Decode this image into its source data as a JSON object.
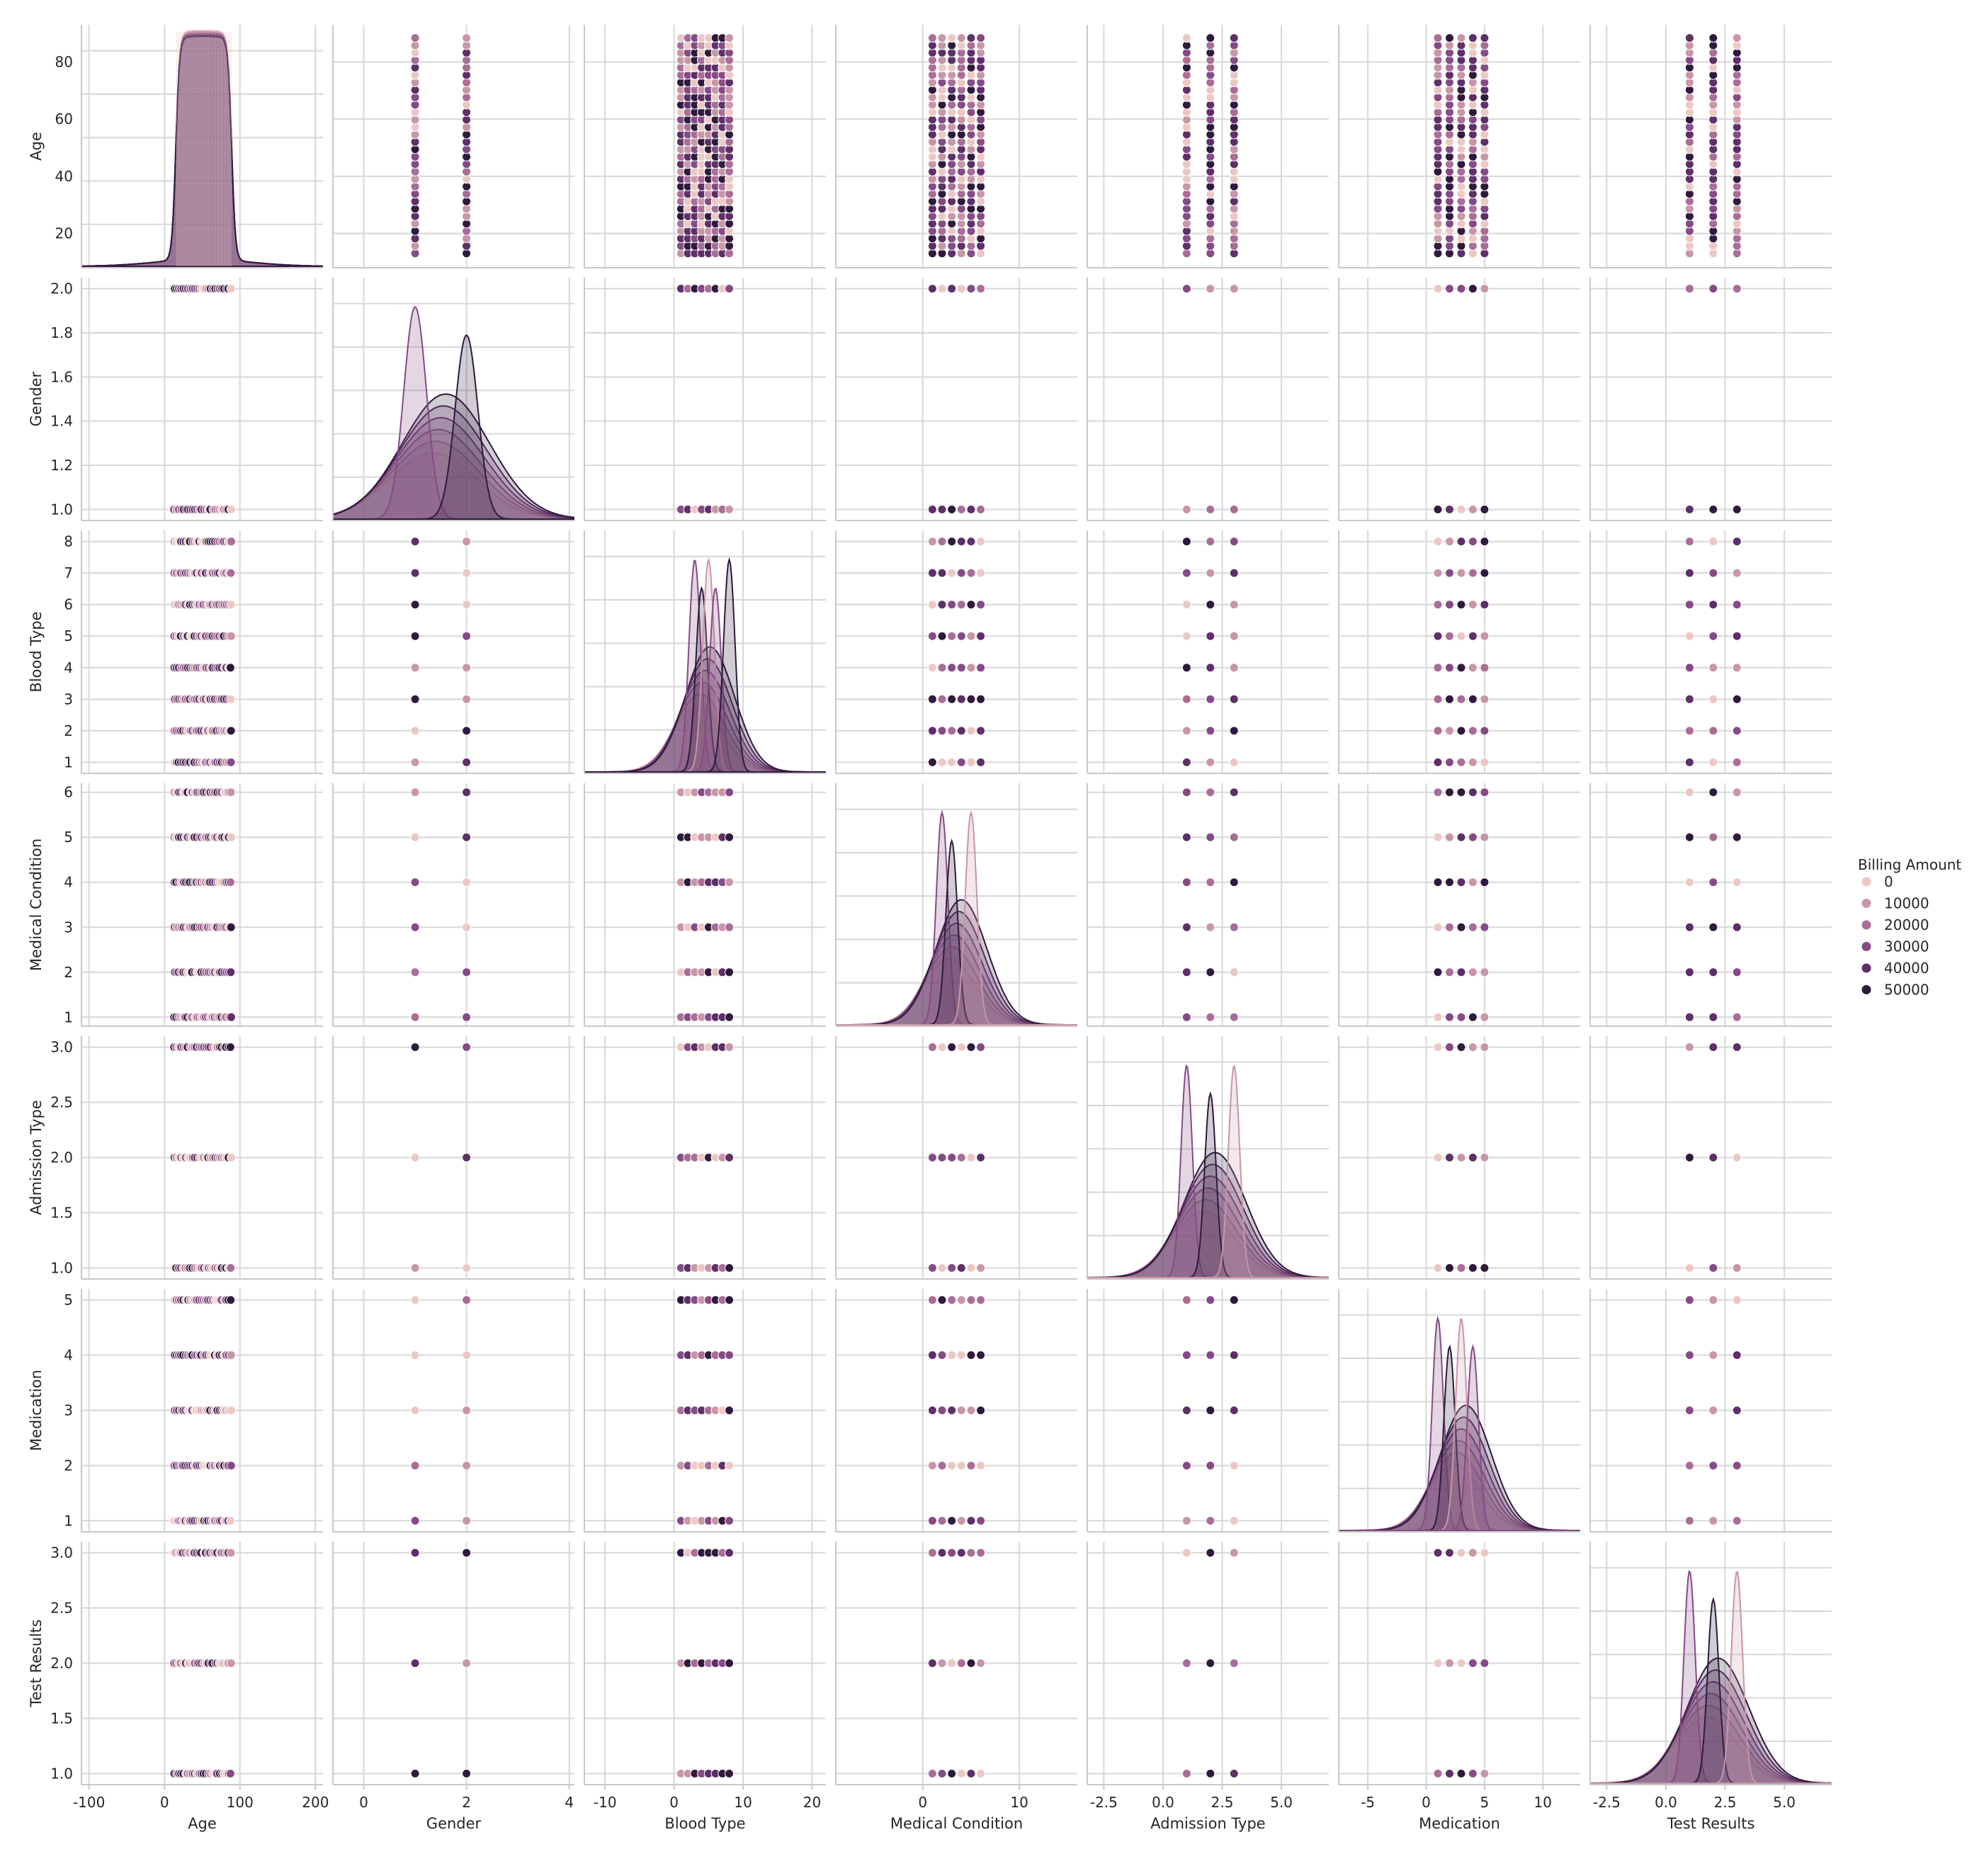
{
  "colors": {
    "hue_scale": [
      "#ecc8c4",
      "#c896a7",
      "#a96d97",
      "#864a86",
      "#5e2f68",
      "#2f1a3d"
    ],
    "grid": "#d7d7d7",
    "spine": "#c8c8c8",
    "text": "#262626"
  },
  "chart_data": {
    "type": "scatter",
    "kind": "pairplot",
    "grid": true,
    "diag_kind": "kde",
    "variables": [
      "Age",
      "Gender",
      "Blood Type",
      "Medical Condition",
      "Admission Type",
      "Medication",
      "Test Results"
    ],
    "legend": {
      "title": "Billing Amount",
      "placement": "right",
      "levels": [
        "0",
        "10000",
        "20000",
        "30000",
        "40000",
        "50000"
      ]
    },
    "variable_ranges": {
      "Age": [
        13,
        89
      ],
      "Gender": [
        1,
        2
      ],
      "Blood Type": [
        1,
        8
      ],
      "Medical Condition": [
        1,
        6
      ],
      "Admission Type": [
        1,
        3
      ],
      "Medication": [
        1,
        5
      ],
      "Test Results": [
        1,
        3
      ]
    },
    "x_axis_limits": {
      "Age": [
        -110,
        210
      ],
      "Gender": [
        -0.6,
        4.1
      ],
      "Blood Type": [
        -13,
        22
      ],
      "Medical Condition": [
        -9,
        16
      ],
      "Admission Type": [
        -3.2,
        7.0
      ],
      "Medication": [
        -7.5,
        13.2
      ],
      "Test Results": [
        -3.2,
        7.0
      ]
    },
    "y_axis_limits": {
      "Age": [
        8,
        93
      ],
      "Gender": [
        0.95,
        2.05
      ],
      "Blood Type": [
        0.65,
        8.35
      ],
      "Medical Condition": [
        0.8,
        6.2
      ],
      "Admission Type": [
        0.9,
        3.1
      ],
      "Medication": [
        0.8,
        5.2
      ],
      "Test Results": [
        0.9,
        3.1
      ]
    },
    "x_ticks": {
      "Age": [
        "-100",
        "0",
        "100",
        "200"
      ],
      "Gender": [
        "0",
        "2",
        "4"
      ],
      "Blood Type": [
        "-10",
        "0",
        "10",
        "20"
      ],
      "Medical Condition": [
        "0",
        "10"
      ],
      "Admission Type": [
        "-2.5",
        "0.0",
        "2.5",
        "5.0"
      ],
      "Medication": [
        "-5",
        "0",
        "5",
        "10"
      ],
      "Test Results": [
        "-2.5",
        "0.0",
        "2.5",
        "5.0"
      ]
    },
    "y_ticks": {
      "Age": [
        "20",
        "40",
        "60",
        "80"
      ],
      "Gender": [
        "1.0",
        "1.2",
        "1.4",
        "1.6",
        "1.8",
        "2.0"
      ],
      "Blood Type": [
        "1",
        "2",
        "3",
        "4",
        "5",
        "6",
        "7",
        "8"
      ],
      "Medical Condition": [
        "1",
        "2",
        "3",
        "4",
        "5",
        "6"
      ],
      "Admission Type": [
        "1.0",
        "1.5",
        "2.0",
        "2.5",
        "3.0"
      ],
      "Medication": [
        "1",
        "2",
        "3",
        "4",
        "5"
      ],
      "Test Results": [
        "1.0",
        "1.5",
        "2.0",
        "2.5",
        "3.0"
      ]
    },
    "diagonal_kde_peaks": {
      "Age": {
        "x_center": 51,
        "note_hue_peaks": [
          "flat top 15-90"
        ]
      },
      "Gender": {
        "hue_modes": [
          1,
          2
        ]
      },
      "Blood Type": {
        "hue_modes": [
          3,
          4,
          5,
          6,
          8
        ]
      },
      "Medical Condition": {
        "hue_modes": [
          2,
          3,
          5
        ]
      },
      "Admission Type": {
        "hue_modes": [
          1,
          2,
          3
        ]
      },
      "Medication": {
        "hue_modes": [
          1,
          2,
          3,
          4
        ]
      },
      "Test Results": {
        "hue_modes": [
          1,
          2,
          3
        ]
      }
    }
  }
}
